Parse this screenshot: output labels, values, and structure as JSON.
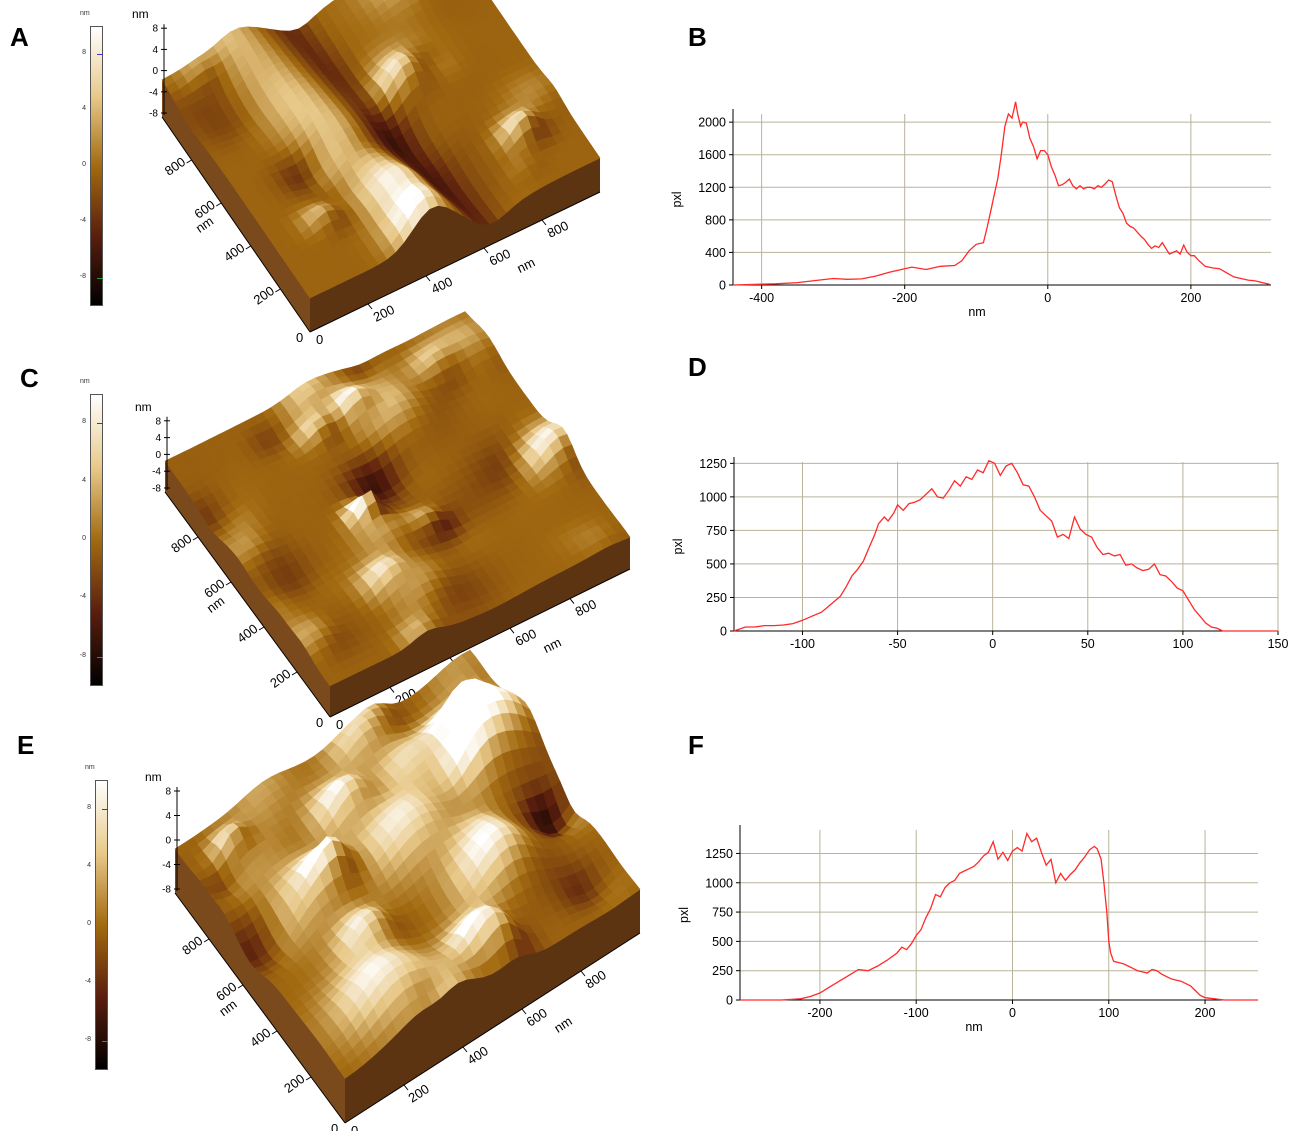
{
  "panels": [
    {
      "letter": "A"
    },
    {
      "letter": "B"
    },
    {
      "letter": "C"
    },
    {
      "letter": "D"
    },
    {
      "letter": "E"
    },
    {
      "letter": "F"
    }
  ],
  "colorbar": {
    "unit": "nm",
    "ticks": [
      "8",
      "4",
      "0",
      "-4",
      "-8"
    ],
    "colors": [
      "#ffffff",
      "#e8c98a",
      "#a26a10",
      "#5a1e0e",
      "#000000"
    ]
  },
  "surfaces": [
    {
      "z_label": "nm",
      "z_ticks": [
        "8",
        "4",
        "0",
        "-4",
        "-8"
      ],
      "x_ticks": [
        "200",
        "400",
        "600",
        "800"
      ],
      "x_label": "nm",
      "y_ticks": [
        "200",
        "400",
        "600",
        "800"
      ],
      "y_label": "nm",
      "origin_x": "0",
      "origin_y": "0"
    },
    {
      "z_label": "nm",
      "z_ticks": [
        "8",
        "4",
        "0",
        "-4",
        "-8"
      ],
      "x_ticks": [
        "200",
        "400",
        "600",
        "800"
      ],
      "x_label": "nm",
      "y_ticks": [
        "200",
        "400",
        "600",
        "800"
      ],
      "y_label": "nm",
      "origin_x": "0",
      "origin_y": "0"
    },
    {
      "z_label": "nm",
      "z_ticks": [
        "8",
        "4",
        "0",
        "-4",
        "-8"
      ],
      "x_ticks": [
        "200",
        "400",
        "600",
        "800"
      ],
      "x_label": "nm",
      "y_ticks": [
        "200",
        "400",
        "600",
        "800"
      ],
      "y_label": "nm",
      "origin_x": "0",
      "origin_y": "0"
    }
  ],
  "chart_data": [
    {
      "type": "line",
      "panel": "B",
      "xlabel": "nm",
      "ylabel": "pxl",
      "xlim": [
        -440,
        312
      ],
      "ylim": [
        0,
        2100
      ],
      "xticks": [
        -400,
        -200,
        0,
        200
      ],
      "yticks": [
        0,
        400,
        800,
        1200,
        1600,
        2000
      ],
      "line_color": "#ff2a2a",
      "x": [
        -440,
        -400,
        -380,
        -350,
        -320,
        -300,
        -280,
        -260,
        -240,
        -220,
        -200,
        -190,
        -170,
        -150,
        -130,
        -120,
        -110,
        -100,
        -90,
        -85,
        -80,
        -75,
        -70,
        -65,
        -60,
        -55,
        -50,
        -45,
        -42,
        -38,
        -35,
        -30,
        -25,
        -20,
        -15,
        -10,
        -5,
        0,
        5,
        10,
        15,
        20,
        25,
        30,
        35,
        40,
        45,
        50,
        55,
        60,
        65,
        70,
        75,
        80,
        85,
        90,
        95,
        100,
        105,
        110,
        115,
        120,
        125,
        130,
        135,
        140,
        145,
        150,
        155,
        160,
        165,
        170,
        175,
        180,
        185,
        190,
        195,
        200,
        205,
        210,
        220,
        230,
        240,
        250,
        260,
        270,
        280,
        290,
        300,
        310
      ],
      "y": [
        0,
        10,
        15,
        30,
        60,
        80,
        70,
        75,
        110,
        160,
        200,
        220,
        190,
        230,
        240,
        300,
        420,
        500,
        520,
        700,
        900,
        1100,
        1300,
        1600,
        1950,
        2100,
        2050,
        2250,
        2100,
        1950,
        2000,
        1990,
        1800,
        1700,
        1550,
        1650,
        1650,
        1600,
        1450,
        1350,
        1220,
        1230,
        1260,
        1300,
        1220,
        1180,
        1220,
        1180,
        1200,
        1200,
        1180,
        1220,
        1200,
        1240,
        1290,
        1270,
        1100,
        950,
        880,
        760,
        720,
        700,
        650,
        600,
        560,
        500,
        450,
        480,
        460,
        520,
        450,
        380,
        400,
        420,
        380,
        490,
        400,
        360,
        360,
        310,
        230,
        210,
        200,
        150,
        100,
        80,
        60,
        50,
        30,
        10
      ],
      "series": [
        {
          "values": "y"
        }
      ]
    },
    {
      "type": "line",
      "panel": "D",
      "xlabel": "",
      "ylabel": "pxl",
      "xlim": [
        -136,
        150
      ],
      "ylim": [
        0,
        1260
      ],
      "xticks": [
        -100,
        -50,
        0,
        50,
        100,
        150
      ],
      "yticks": [
        0,
        250,
        500,
        750,
        1000,
        1250
      ],
      "line_color": "#ff2a2a",
      "x": [
        -136,
        -130,
        -125,
        -120,
        -115,
        -110,
        -105,
        -100,
        -95,
        -90,
        -85,
        -80,
        -77,
        -74,
        -71,
        -68,
        -65,
        -62,
        -60,
        -57,
        -55,
        -52,
        -50,
        -47,
        -44,
        -41,
        -38,
        -35,
        -32,
        -29,
        -26,
        -23,
        -20,
        -17,
        -14,
        -11,
        -8,
        -5,
        -2,
        1,
        4,
        7,
        10,
        13,
        16,
        19,
        22,
        25,
        28,
        31,
        34,
        37,
        40,
        43,
        46,
        49,
        52,
        55,
        58,
        61,
        64,
        67,
        70,
        73,
        76,
        79,
        82,
        85,
        88,
        91,
        94,
        97,
        100,
        103,
        106,
        109,
        112,
        115,
        118,
        121,
        124,
        128,
        135,
        142,
        150
      ],
      "y": [
        0,
        30,
        30,
        40,
        40,
        45,
        55,
        80,
        110,
        140,
        200,
        260,
        330,
        410,
        460,
        520,
        620,
        720,
        800,
        850,
        820,
        880,
        940,
        900,
        950,
        960,
        980,
        1020,
        1060,
        1000,
        990,
        1050,
        1120,
        1080,
        1150,
        1130,
        1200,
        1180,
        1270,
        1250,
        1160,
        1230,
        1250,
        1180,
        1090,
        1080,
        1000,
        900,
        860,
        820,
        700,
        720,
        690,
        850,
        760,
        720,
        700,
        620,
        570,
        580,
        560,
        570,
        490,
        500,
        470,
        450,
        460,
        500,
        420,
        410,
        370,
        320,
        300,
        230,
        160,
        110,
        60,
        30,
        20,
        0,
        0,
        0,
        0,
        0,
        0
      ],
      "series": [
        {
          "values": "y"
        }
      ]
    },
    {
      "type": "line",
      "panel": "F",
      "xlabel": "nm",
      "ylabel": "pxl",
      "xlim": [
        -283,
        255
      ],
      "ylim": [
        0,
        1450
      ],
      "xticks": [
        -200,
        -100,
        0,
        100,
        200
      ],
      "yticks": [
        0,
        250,
        500,
        750,
        1000,
        1250
      ],
      "line_color": "#ff2a2a",
      "x": [
        -283,
        -260,
        -240,
        -220,
        -210,
        -200,
        -190,
        -180,
        -170,
        -160,
        -150,
        -140,
        -130,
        -120,
        -115,
        -110,
        -105,
        -100,
        -95,
        -90,
        -85,
        -80,
        -75,
        -70,
        -65,
        -60,
        -55,
        -50,
        -45,
        -40,
        -35,
        -30,
        -25,
        -20,
        -15,
        -10,
        -5,
        0,
        5,
        10,
        15,
        20,
        25,
        30,
        35,
        40,
        45,
        50,
        55,
        60,
        65,
        70,
        75,
        80,
        85,
        88,
        92,
        95,
        98,
        100,
        102,
        105,
        110,
        115,
        120,
        125,
        130,
        135,
        140,
        145,
        150,
        155,
        160,
        165,
        170,
        175,
        180,
        185,
        190,
        195,
        200,
        210,
        220,
        235,
        255
      ],
      "y": [
        0,
        0,
        0,
        10,
        30,
        60,
        110,
        160,
        210,
        260,
        250,
        290,
        340,
        400,
        450,
        430,
        480,
        550,
        600,
        700,
        780,
        900,
        880,
        960,
        1000,
        1020,
        1080,
        1100,
        1120,
        1140,
        1180,
        1230,
        1260,
        1350,
        1200,
        1260,
        1190,
        1270,
        1300,
        1270,
        1420,
        1350,
        1380,
        1260,
        1150,
        1200,
        1000,
        1080,
        1020,
        1070,
        1110,
        1170,
        1220,
        1280,
        1310,
        1290,
        1200,
        1000,
        750,
        500,
        400,
        330,
        320,
        310,
        290,
        270,
        250,
        240,
        230,
        260,
        250,
        220,
        200,
        180,
        170,
        160,
        140,
        120,
        80,
        40,
        20,
        10,
        0,
        0,
        0
      ],
      "series": [
        {
          "values": "y"
        }
      ]
    }
  ]
}
